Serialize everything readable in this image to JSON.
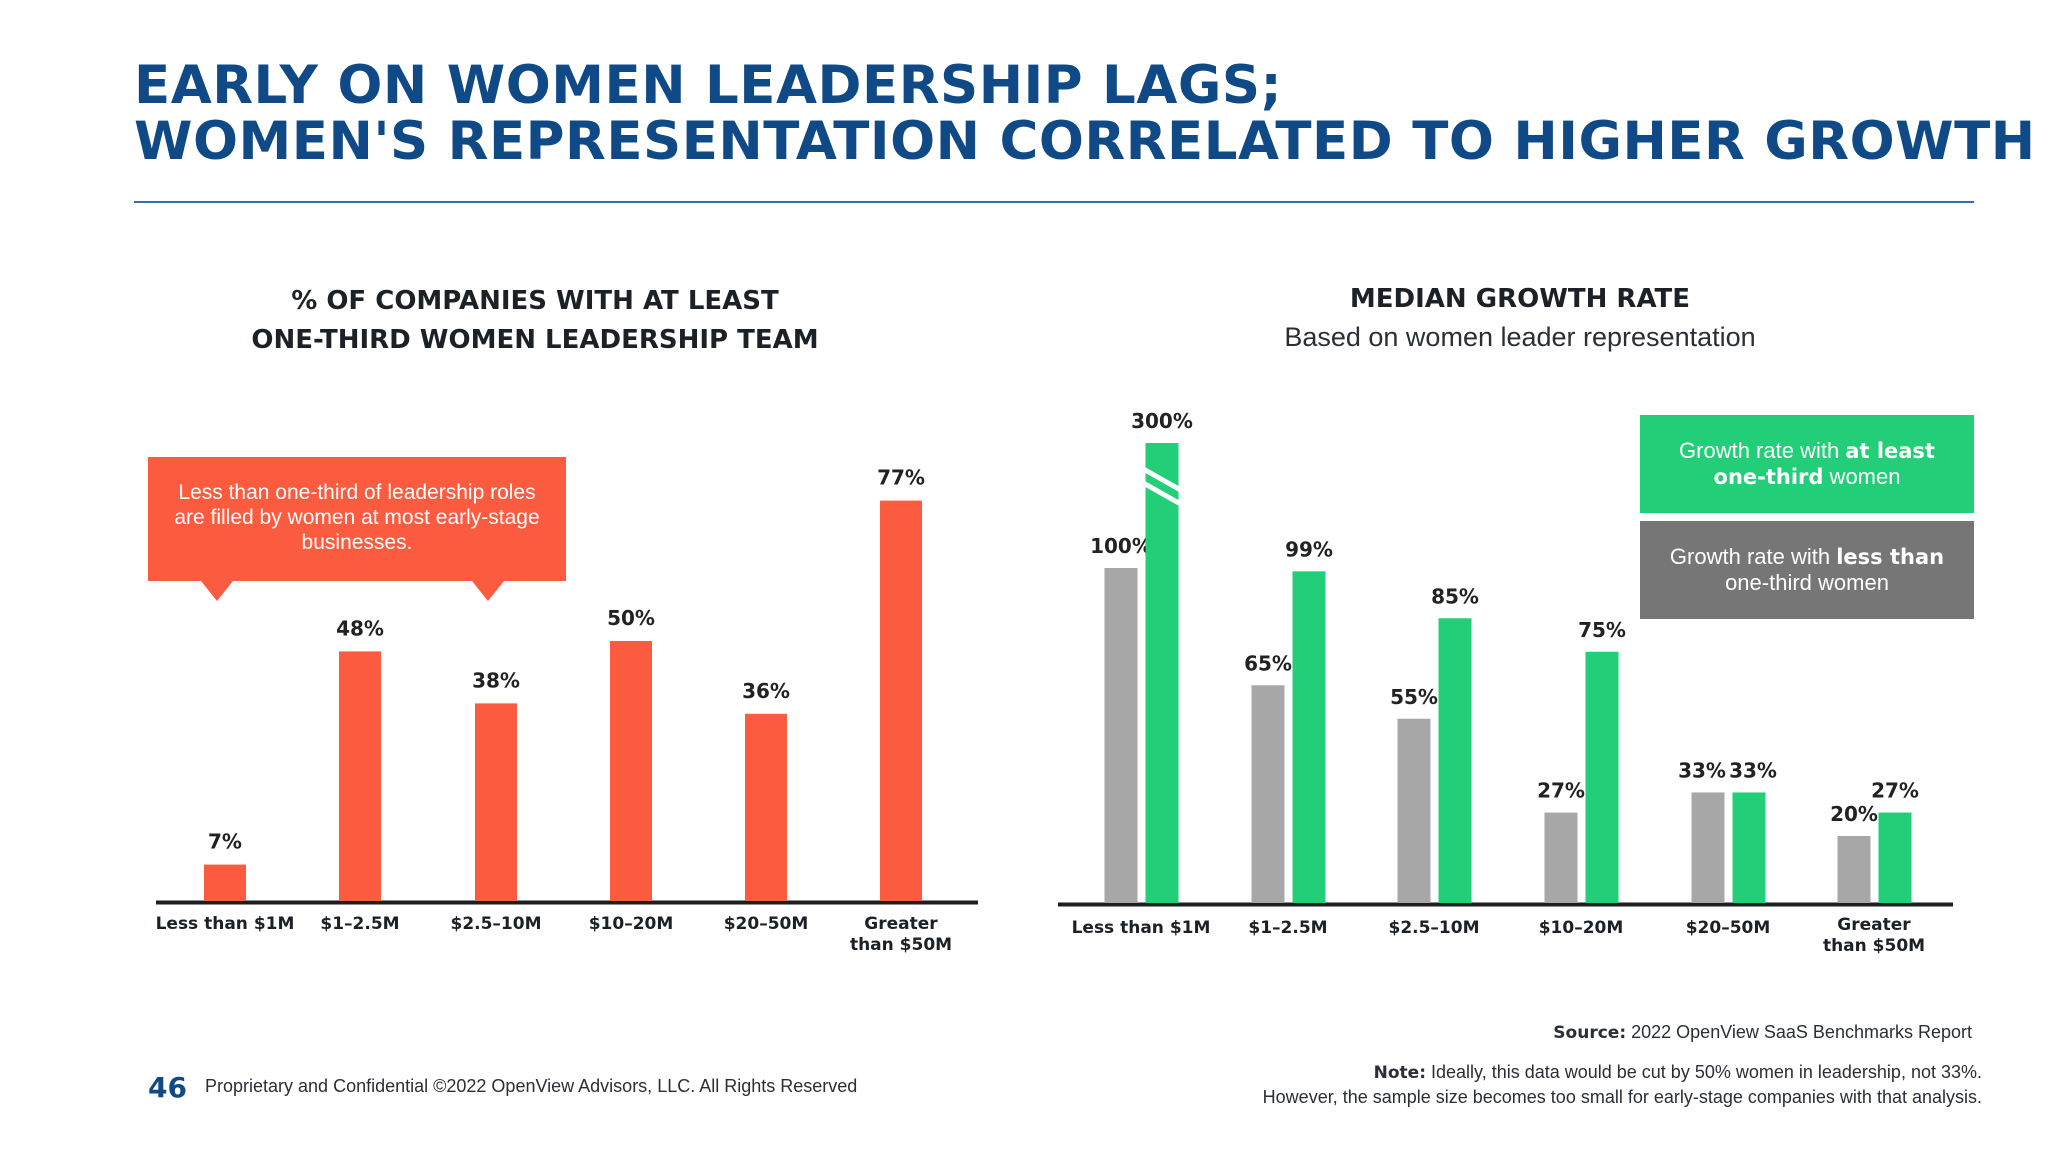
{
  "title": {
    "line1": "EARLY ON WOMEN LEADERSHIP LAGS;",
    "line2": "WOMEN'S REPRESENTATION CORRELATED TO HIGHER GROWTH"
  },
  "left_chart": {
    "heading_line1": "% OF COMPANIES WITH AT LEAST",
    "heading_line2": "ONE-THIRD WOMEN LEADERSHIP TEAM",
    "callout": "Less than one-third of leadership roles are filled by women at most early-stage businesses."
  },
  "right_chart": {
    "heading": "MEDIAN GROWTH RATE",
    "subheading": "Based on women leader representation",
    "legend": {
      "green_pre": "Growth rate with ",
      "green_bold": "at least one-third",
      "green_post": " women",
      "gray_pre": "Growth rate with ",
      "gray_bold": "less than",
      "gray_post": " one-third women"
    }
  },
  "colors": {
    "title": "#0f4a86",
    "orange": "#fb5b3e",
    "green": "#22cf78",
    "gray_bar": "#a7a7a7",
    "legend_gray": "#767676"
  },
  "chart_data": [
    {
      "type": "bar",
      "title": "% OF COMPANIES WITH AT LEAST ONE-THIRD WOMEN LEADERSHIP TEAM",
      "categories": [
        [
          "Less than $1M"
        ],
        [
          "$1–2.5M"
        ],
        [
          "$2.5–10M"
        ],
        [
          "$10–20M"
        ],
        [
          "$20–50M"
        ],
        [
          "Greater",
          "than $50M"
        ]
      ],
      "values": [
        7,
        48,
        38,
        50,
        36,
        77
      ],
      "labels": [
        "7%",
        "48%",
        "38%",
        "50%",
        "36%",
        "77%"
      ],
      "ylim": [
        0,
        80
      ],
      "grid": false,
      "color": "#fb5b3e"
    },
    {
      "type": "bar",
      "title": "MEDIAN GROWTH RATE",
      "subtitle": "Based on women leader representation",
      "categories": [
        [
          "Less than $1M"
        ],
        [
          "$1–2.5M"
        ],
        [
          "$2.5–10M"
        ],
        [
          "$10–20M"
        ],
        [
          "$20–50M"
        ],
        [
          "Greater",
          "than $50M"
        ]
      ],
      "series": [
        {
          "name": "Growth rate with less than one-third women",
          "values": [
            100,
            65,
            55,
            27,
            33,
            20
          ],
          "labels": [
            "100%",
            "65%",
            "55%",
            "27%",
            "33%",
            "20%"
          ],
          "color": "#a7a7a7"
        },
        {
          "name": "Growth rate with at least one-third women",
          "values": [
            300,
            99,
            85,
            75,
            33,
            27
          ],
          "labels": [
            "300%",
            "99%",
            "85%",
            "75%",
            "33%",
            "27%"
          ],
          "color": "#22cf78"
        }
      ],
      "axis_break": true,
      "ylim": [
        0,
        110
      ],
      "grid": false,
      "legend": "top-right"
    }
  ],
  "footer": {
    "page_number": "46",
    "confidential": "Proprietary and Confidential ©2022 OpenView Advisors, LLC. All Rights Reserved",
    "source_label": "Source:",
    "source_text": " 2022 OpenView SaaS Benchmarks Report",
    "note_label": "Note:",
    "note_line1": " Ideally, this data would be cut by 50% women in leadership, not 33%.",
    "note_line2": "However, the sample size becomes too small for early-stage companies with that analysis."
  }
}
